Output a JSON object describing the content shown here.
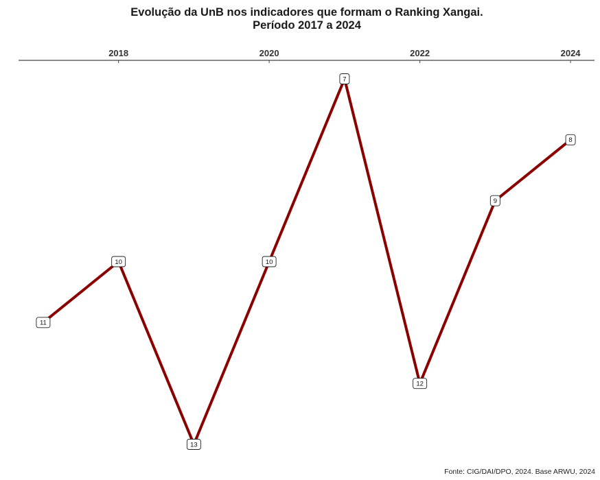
{
  "chart_data": {
    "type": "line",
    "title": "Evolução da UnB nos indicadores que formam o Ranking Xangai.",
    "subtitle": "Período 2017 a 2024",
    "x_axis_position": "top",
    "x_ticks": [
      "2018",
      "2020",
      "2022",
      "2024"
    ],
    "x": [
      2017,
      2018,
      2019,
      2020,
      2021,
      2022,
      2023,
      2024
    ],
    "values": [
      11,
      10,
      13,
      10,
      7,
      12,
      9,
      8
    ],
    "data_labels": [
      "11",
      "10",
      "13",
      "10",
      "7",
      "12",
      "9",
      "8"
    ],
    "y_reversed": true,
    "y_range": [
      13,
      7
    ],
    "xlim": [
      2016.7,
      2024.3
    ],
    "grid": false,
    "line_color": "#8b0000",
    "caption": "Fonte: CIG/DAI/DPO, 2024. Base ARWU, 2024"
  }
}
